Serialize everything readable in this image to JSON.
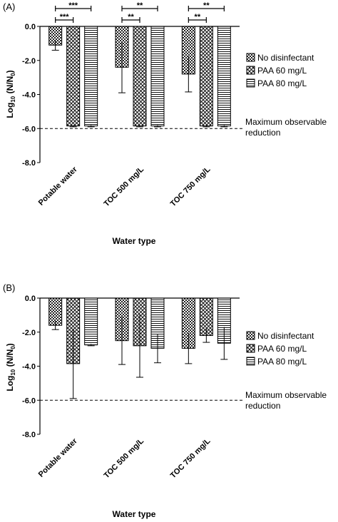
{
  "chart_data": [
    {
      "type": "bar",
      "panel_label": "(A)",
      "categories": [
        "Potable water",
        "TOC 500 mg/L",
        "TOC 750 mg/L"
      ],
      "series": [
        {
          "name": "No disinfectant",
          "values": [
            -1.1,
            -2.4,
            -2.8
          ],
          "errors": [
            0.3,
            1.5,
            1.05
          ],
          "pattern": "check"
        },
        {
          "name": "PAA 60 mg/L",
          "values": [
            -5.85,
            -5.85,
            -5.85
          ],
          "errors": [
            0.05,
            0.05,
            0.05
          ],
          "pattern": "cross"
        },
        {
          "name": "PAA 80 mg/L",
          "values": [
            -5.85,
            -5.85,
            -5.85
          ],
          "errors": [
            0.05,
            0.05,
            0.05
          ],
          "pattern": "hline"
        }
      ],
      "ylabel": "Log10 (N/N0)",
      "xlabel": "Water type",
      "ylim": [
        -8.0,
        0.0
      ],
      "yticks": [
        "0.0",
        "-2.0",
        "-4.0",
        "-6.0",
        "-8.0"
      ],
      "reference_line": {
        "y": -6.0,
        "label_line1": "Maximum observable",
        "label_line2": "reduction"
      },
      "significance": [
        {
          "category": 0,
          "from_series": 0,
          "to_series": 1,
          "label": "***"
        },
        {
          "category": 0,
          "from_series": 0,
          "to_series": 2,
          "label": "***"
        },
        {
          "category": 1,
          "from_series": 0,
          "to_series": 1,
          "label": "**"
        },
        {
          "category": 1,
          "from_series": 0,
          "to_series": 2,
          "label": "**"
        },
        {
          "category": 2,
          "from_series": 0,
          "to_series": 1,
          "label": "**"
        },
        {
          "category": 2,
          "from_series": 0,
          "to_series": 2,
          "label": "**"
        }
      ],
      "legend_position": "right"
    },
    {
      "type": "bar",
      "panel_label": "(B)",
      "categories": [
        "Potable water",
        "TOC 500 mg/L",
        "TOC 750 mg/L"
      ],
      "series": [
        {
          "name": "No disinfectant",
          "values": [
            -1.6,
            -2.5,
            -2.95
          ],
          "errors": [
            0.25,
            1.4,
            0.9
          ],
          "pattern": "check"
        },
        {
          "name": "PAA 60 mg/L",
          "values": [
            -3.85,
            -2.8,
            -2.2
          ],
          "errors": [
            2.05,
            1.85,
            0.4
          ],
          "pattern": "cross"
        },
        {
          "name": "PAA 80 mg/L",
          "values": [
            -2.75,
            -2.95,
            -2.65
          ],
          "errors": [
            0.05,
            0.85,
            0.95
          ],
          "pattern": "hline"
        }
      ],
      "ylabel": "Log10 (N/N0)",
      "xlabel": "Water type",
      "ylim": [
        -8.0,
        0.0
      ],
      "yticks": [
        "0.0",
        "-2.0",
        "-4.0",
        "-6.0",
        "-8.0"
      ],
      "reference_line": {
        "y": -6.0,
        "label_line1": "Maximum observable",
        "label_line2": "reduction"
      },
      "significance": [],
      "legend_position": "right"
    }
  ]
}
